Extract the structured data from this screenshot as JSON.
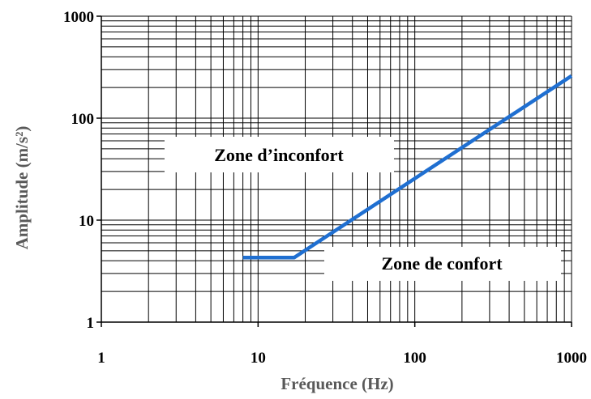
{
  "chart_data": {
    "type": "line",
    "xlabel": "Fréquence (Hz)",
    "ylabel": "Amplitude (m/s²)",
    "x_scale": "log",
    "y_scale": "log",
    "xlim": [
      1,
      1000
    ],
    "ylim": [
      1,
      1000
    ],
    "x_ticks": [
      "1",
      "10",
      "100",
      "1000"
    ],
    "y_ticks": [
      "1",
      "10",
      "100",
      "1000"
    ],
    "grid": true,
    "series": [
      {
        "color": "#1f6fd1",
        "points": [
          {
            "x": 8,
            "y": 4.3
          },
          {
            "x": 17,
            "y": 4.3
          },
          {
            "x": 1000,
            "y": 260
          }
        ]
      }
    ],
    "annotations": [
      {
        "text": "Zone d’inconfort"
      },
      {
        "text": "Zone de confort"
      }
    ]
  }
}
